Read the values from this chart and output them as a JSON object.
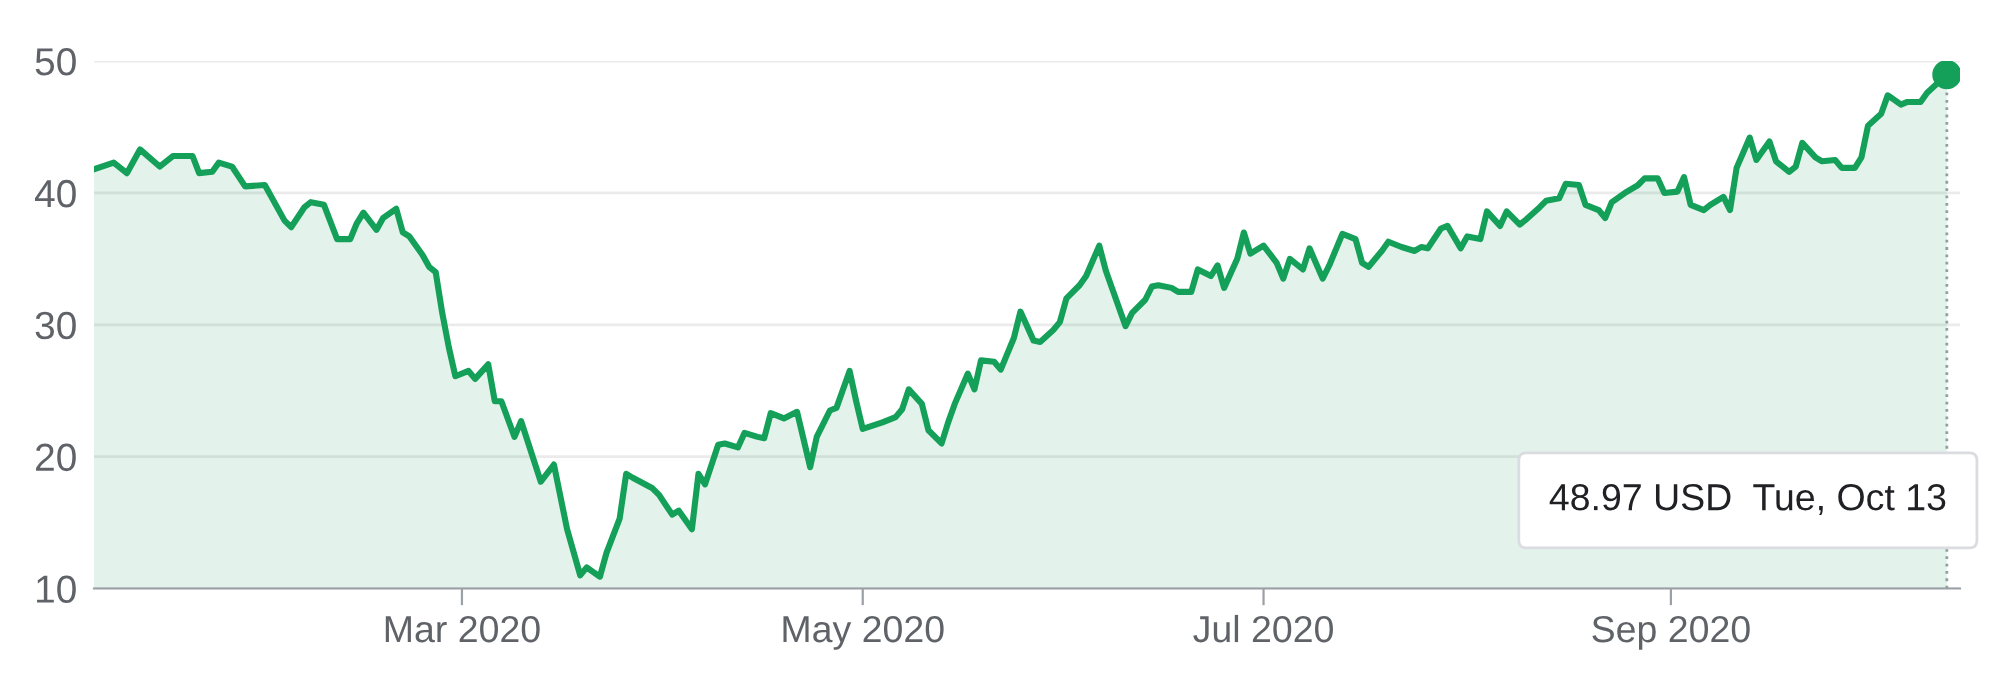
{
  "chart_data": {
    "type": "area",
    "x": [
      "2020-01-05",
      "2020-01-08",
      "2020-01-10",
      "2020-01-12",
      "2020-01-15",
      "2020-01-17",
      "2020-01-20",
      "2020-01-21",
      "2020-01-23",
      "2020-01-24",
      "2020-01-26",
      "2020-01-28",
      "2020-01-31",
      "2020-02-03",
      "2020-02-04",
      "2020-02-06",
      "2020-02-07",
      "2020-02-09",
      "2020-02-11",
      "2020-02-13",
      "2020-02-14",
      "2020-02-15",
      "2020-02-17",
      "2020-02-18",
      "2020-02-20",
      "2020-02-21",
      "2020-02-22",
      "2020-02-24",
      "2020-02-25",
      "2020-02-26",
      "2020-02-27",
      "2020-02-28",
      "2020-02-29",
      "2020-03-02",
      "2020-03-03",
      "2020-03-05",
      "2020-03-06",
      "2020-03-07",
      "2020-03-09",
      "2020-03-10",
      "2020-03-13",
      "2020-03-15",
      "2020-03-17",
      "2020-03-19",
      "2020-03-20",
      "2020-03-22",
      "2020-03-23",
      "2020-03-25",
      "2020-03-26",
      "2020-03-27",
      "2020-03-30",
      "2020-03-31",
      "2020-04-02",
      "2020-04-03",
      "2020-04-05",
      "2020-04-06",
      "2020-04-07",
      "2020-04-09",
      "2020-04-10",
      "2020-04-12",
      "2020-04-13",
      "2020-04-15",
      "2020-04-16",
      "2020-04-17",
      "2020-04-19",
      "2020-04-21",
      "2020-04-23",
      "2020-04-24",
      "2020-04-26",
      "2020-04-27",
      "2020-04-29",
      "2020-04-30",
      "2020-05-01",
      "2020-05-04",
      "2020-05-06",
      "2020-05-07",
      "2020-05-08",
      "2020-05-10",
      "2020-05-11",
      "2020-05-13",
      "2020-05-14",
      "2020-05-15",
      "2020-05-17",
      "2020-05-18",
      "2020-05-19",
      "2020-05-21",
      "2020-05-22",
      "2020-05-24",
      "2020-05-25",
      "2020-05-27",
      "2020-05-28",
      "2020-05-30",
      "2020-05-31",
      "2020-06-01",
      "2020-06-03",
      "2020-06-04",
      "2020-06-06",
      "2020-06-07",
      "2020-06-08",
      "2020-06-10",
      "2020-06-11",
      "2020-06-13",
      "2020-06-14",
      "2020-06-15",
      "2020-06-17",
      "2020-06-18",
      "2020-06-20",
      "2020-06-21",
      "2020-06-23",
      "2020-06-24",
      "2020-06-25",
      "2020-06-27",
      "2020-06-28",
      "2020-06-29",
      "2020-07-01",
      "2020-07-03",
      "2020-07-04",
      "2020-07-05",
      "2020-07-07",
      "2020-07-08",
      "2020-07-10",
      "2020-07-11",
      "2020-07-13",
      "2020-07-15",
      "2020-07-16",
      "2020-07-17",
      "2020-07-19",
      "2020-07-20",
      "2020-07-22",
      "2020-07-24",
      "2020-07-25",
      "2020-07-26",
      "2020-07-28",
      "2020-07-29",
      "2020-07-31",
      "2020-08-01",
      "2020-08-03",
      "2020-08-04",
      "2020-08-06",
      "2020-08-07",
      "2020-08-09",
      "2020-08-10",
      "2020-08-12",
      "2020-08-13",
      "2020-08-15",
      "2020-08-16",
      "2020-08-18",
      "2020-08-19",
      "2020-08-21",
      "2020-08-22",
      "2020-08-23",
      "2020-08-25",
      "2020-08-27",
      "2020-08-28",
      "2020-08-30",
      "2020-08-31",
      "2020-09-02",
      "2020-09-03",
      "2020-09-04",
      "2020-09-06",
      "2020-09-07",
      "2020-09-09",
      "2020-09-10",
      "2020-09-11",
      "2020-09-13",
      "2020-09-14",
      "2020-09-16",
      "2020-09-17",
      "2020-09-19",
      "2020-09-20",
      "2020-09-21",
      "2020-09-23",
      "2020-09-24",
      "2020-09-26",
      "2020-09-27",
      "2020-09-29",
      "2020-09-30",
      "2020-10-01",
      "2020-10-03",
      "2020-10-04",
      "2020-10-06",
      "2020-10-07",
      "2020-10-09",
      "2020-10-10",
      "2020-10-13"
    ],
    "series": [
      {
        "color": "#15a05a",
        "values": [
          41.8,
          42.3,
          41.5,
          43.3,
          42.0,
          42.8,
          42.8,
          41.5,
          41.6,
          42.3,
          42.0,
          40.5,
          40.6,
          37.9,
          37.4,
          38.9,
          39.3,
          39.1,
          36.5,
          36.5,
          37.7,
          38.5,
          37.2,
          38.1,
          38.8,
          37.0,
          36.7,
          35.3,
          34.4,
          34.0,
          30.9,
          28.3,
          26.1,
          26.5,
          25.9,
          27.0,
          24.2,
          24.2,
          21.5,
          22.7,
          18.1,
          19.4,
          14.5,
          11.0,
          11.6,
          10.9,
          12.7,
          15.3,
          18.7,
          18.4,
          17.6,
          17.1,
          15.6,
          15.9,
          14.5,
          18.7,
          17.9,
          20.9,
          21.0,
          20.7,
          21.8,
          21.5,
          21.4,
          23.3,
          22.9,
          23.4,
          19.2,
          21.5,
          23.5,
          23.7,
          26.5,
          24.2,
          22.1,
          22.6,
          23.0,
          23.6,
          25.1,
          24.0,
          22.0,
          21.0,
          22.6,
          24.0,
          26.3,
          25.1,
          27.3,
          27.2,
          26.6,
          29.0,
          31.0,
          28.8,
          28.7,
          29.6,
          30.2,
          32.0,
          33.0,
          33.7,
          36.0,
          34.1,
          32.7,
          29.9,
          30.9,
          31.9,
          32.9,
          33.0,
          32.8,
          32.5,
          32.5,
          34.2,
          33.7,
          34.5,
          32.8,
          35.0,
          37.0,
          35.4,
          36.0,
          34.7,
          33.5,
          35.0,
          34.2,
          35.8,
          33.5,
          34.5,
          36.9,
          36.5,
          34.7,
          34.4,
          35.6,
          36.3,
          35.9,
          35.6,
          35.9,
          35.8,
          37.3,
          37.5,
          35.8,
          36.7,
          36.5,
          38.6,
          37.5,
          38.6,
          37.6,
          38.0,
          38.9,
          39.4,
          39.6,
          40.7,
          40.6,
          39.1,
          38.7,
          38.1,
          39.3,
          40.0,
          40.6,
          41.1,
          41.1,
          40.0,
          40.1,
          41.2,
          39.1,
          38.7,
          39.1,
          39.7,
          38.7,
          41.9,
          44.2,
          42.5,
          43.9,
          42.4,
          41.6,
          42.0,
          43.8,
          42.7,
          42.4,
          42.5,
          41.9,
          41.9,
          42.7,
          45.1,
          46.0,
          47.4,
          46.7,
          46.9,
          46.9,
          47.6,
          48.97
        ]
      },
      {
        "type": "scatter",
        "color": "#15a05a",
        "x": [
          "2020-10-13"
        ],
        "values": [
          48.97
        ],
        "marker": "circle"
      }
    ],
    "xlim": [
      "2020-01-05",
      "2020-10-15"
    ],
    "xticks": [
      {
        "value": "2020-03-01",
        "label": "Mar 2020"
      },
      {
        "value": "2020-05-01",
        "label": "May 2020"
      },
      {
        "value": "2020-07-01",
        "label": "Jul 2020"
      },
      {
        "value": "2020-09-01",
        "label": "Sep 2020"
      }
    ],
    "ylim": [
      10,
      50
    ],
    "yticks": [
      10,
      20,
      30,
      40,
      50
    ],
    "grid": "y",
    "ref_lines": [
      {
        "axis": "x",
        "value": "2020-10-13",
        "color": "#9aa0a6",
        "line_style": "dotted"
      }
    ],
    "annotations": [
      "48.97 USD  Tue, Oct 13"
    ]
  }
}
